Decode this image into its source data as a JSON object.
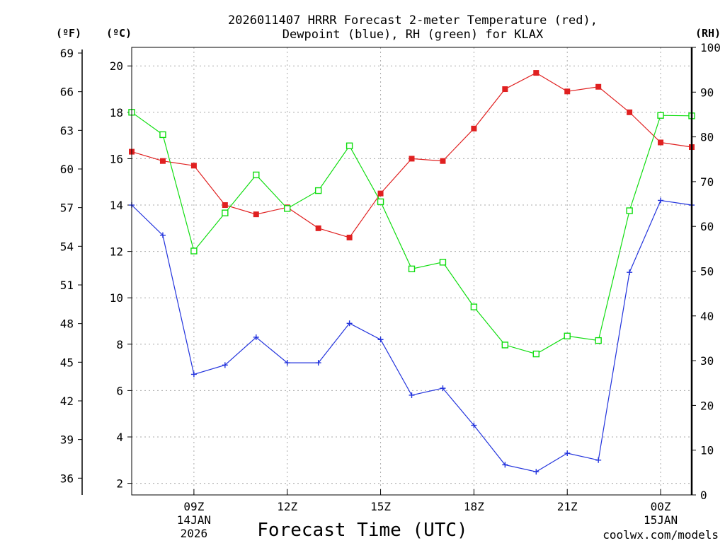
{
  "colors": {
    "temperature": "#e02020",
    "dewpoint": "#2233dd",
    "rh": "#10dd10",
    "grid": "#aaaaaa",
    "credit": "#dd1111"
  },
  "chart_data": {
    "type": "line",
    "title_line1": "2026011407 HRRR Forecast 2-meter Temperature (red),",
    "title_line2": "Dewpoint (blue), RH (green) for KLAX",
    "xlabel": "Forecast Time (UTC)",
    "credit": "coolwx.com/models",
    "unit_left_f": "(ºF)",
    "unit_left_c": "(ºC)",
    "unit_right": "(RH)",
    "x_hours": [
      7,
      8,
      9,
      10,
      11,
      12,
      13,
      14,
      15,
      16,
      17,
      18,
      19,
      20,
      21,
      22,
      23,
      24,
      25
    ],
    "xlim": [
      7,
      25
    ],
    "x_ticks": [
      {
        "hour": 9,
        "label": "09Z",
        "date": "14JAN",
        "year": "2026"
      },
      {
        "hour": 12,
        "label": "12Z",
        "date": "",
        "year": ""
      },
      {
        "hour": 15,
        "label": "15Z",
        "date": "",
        "year": ""
      },
      {
        "hour": 18,
        "label": "18Z",
        "date": "",
        "year": ""
      },
      {
        "hour": 21,
        "label": "21Z",
        "date": "",
        "year": ""
      },
      {
        "hour": 24,
        "label": "00Z",
        "date": "15JAN",
        "year": ""
      }
    ],
    "celsius_axis": {
      "range": [
        1.5,
        20.8
      ],
      "ticks": [
        2,
        4,
        6,
        8,
        10,
        12,
        14,
        16,
        18,
        20
      ]
    },
    "fahrenheit_ticks": [
      36,
      39,
      42,
      45,
      48,
      51,
      54,
      57,
      60,
      63,
      66,
      69
    ],
    "rh_axis": {
      "range": [
        0,
        100
      ],
      "ticks": [
        0,
        10,
        20,
        30,
        40,
        50,
        60,
        70,
        80,
        90,
        100
      ]
    },
    "series": [
      {
        "name": "2-meter Temperature",
        "key": "temperature",
        "axis": "C",
        "marker": "filled-square",
        "values": [
          16.3,
          15.9,
          15.7,
          14.0,
          13.6,
          13.9,
          13.0,
          12.6,
          14.5,
          16.0,
          15.9,
          17.3,
          19.0,
          19.7,
          18.9,
          19.1,
          18.0,
          16.7,
          16.5
        ]
      },
      {
        "name": "Dewpoint",
        "key": "dewpoint",
        "axis": "C",
        "marker": "plus",
        "values": [
          14.0,
          12.7,
          6.7,
          7.1,
          8.3,
          7.2,
          7.2,
          8.9,
          8.2,
          5.8,
          6.1,
          4.5,
          2.8,
          2.5,
          3.3,
          3.0,
          11.1,
          14.2,
          14.0
        ]
      },
      {
        "name": "RH",
        "key": "rh",
        "axis": "RH",
        "marker": "open-square",
        "values": [
          85.5,
          80.5,
          54.5,
          63.0,
          71.5,
          64.0,
          68.0,
          78.0,
          65.5,
          50.5,
          52.0,
          42.0,
          33.5,
          31.5,
          35.5,
          34.5,
          63.5,
          84.8,
          84.7
        ]
      }
    ]
  }
}
